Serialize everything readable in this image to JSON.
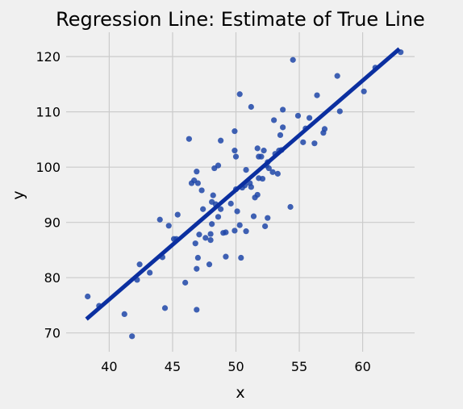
{
  "chart_data": {
    "type": "scatter",
    "title": "Regression Line: Estimate of True Line",
    "xlabel": "x",
    "ylabel": "y",
    "xlim": [
      36.6,
      64.1
    ],
    "ylim": [
      66.6,
      124.4
    ],
    "xticks": [
      40,
      45,
      50,
      55,
      60
    ],
    "yticks": [
      70,
      80,
      90,
      100,
      110,
      120
    ],
    "grid": true,
    "point_color": "#1f47a8",
    "line_color": "#0b2fa0",
    "background": "#f0f0f0",
    "points": [
      [
        38.3,
        76.6
      ],
      [
        39.2,
        74.9
      ],
      [
        41.2,
        73.4
      ],
      [
        41.8,
        69.4
      ],
      [
        42.2,
        79.6
      ],
      [
        42.4,
        82.4
      ],
      [
        43.2,
        80.9
      ],
      [
        44.0,
        90.5
      ],
      [
        44.2,
        83.7
      ],
      [
        44.4,
        74.5
      ],
      [
        44.7,
        89.4
      ],
      [
        45.1,
        87.0
      ],
      [
        45.3,
        87.0
      ],
      [
        45.4,
        91.4
      ],
      [
        46.0,
        79.1
      ],
      [
        46.3,
        105.1
      ],
      [
        46.5,
        97.1
      ],
      [
        46.7,
        97.6
      ],
      [
        46.8,
        86.2
      ],
      [
        46.9,
        74.2
      ],
      [
        46.9,
        81.6
      ],
      [
        46.9,
        99.2
      ],
      [
        47.0,
        83.6
      ],
      [
        47.0,
        97.1
      ],
      [
        47.1,
        87.8
      ],
      [
        47.3,
        95.8
      ],
      [
        47.4,
        92.4
      ],
      [
        47.6,
        87.2
      ],
      [
        47.9,
        82.4
      ],
      [
        48.0,
        86.8
      ],
      [
        48.0,
        87.9
      ],
      [
        48.1,
        89.7
      ],
      [
        48.1,
        93.7
      ],
      [
        48.2,
        94.9
      ],
      [
        48.3,
        99.8
      ],
      [
        48.4,
        93.3
      ],
      [
        48.6,
        100.3
      ],
      [
        48.6,
        91.0
      ],
      [
        48.8,
        104.8
      ],
      [
        48.8,
        92.4
      ],
      [
        49.0,
        88.1
      ],
      [
        49.2,
        83.8
      ],
      [
        49.2,
        88.2
      ],
      [
        49.6,
        93.4
      ],
      [
        49.9,
        103.0
      ],
      [
        49.9,
        88.5
      ],
      [
        49.9,
        106.5
      ],
      [
        50.0,
        101.9
      ],
      [
        50.0,
        96.0
      ],
      [
        50.1,
        92.0
      ],
      [
        50.3,
        113.2
      ],
      [
        50.3,
        89.5
      ],
      [
        50.4,
        83.6
      ],
      [
        50.5,
        96.3
      ],
      [
        50.7,
        96.7
      ],
      [
        50.8,
        88.4
      ],
      [
        50.8,
        99.5
      ],
      [
        51.1,
        97.1
      ],
      [
        51.2,
        96.4
      ],
      [
        51.2,
        110.9
      ],
      [
        51.4,
        91.1
      ],
      [
        51.5,
        94.5
      ],
      [
        51.7,
        103.4
      ],
      [
        51.7,
        95.0
      ],
      [
        51.8,
        98.0
      ],
      [
        51.8,
        101.9
      ],
      [
        52.0,
        101.9
      ],
      [
        52.1,
        97.9
      ],
      [
        52.2,
        103.0
      ],
      [
        52.3,
        89.3
      ],
      [
        52.4,
        100.3
      ],
      [
        52.5,
        100.9
      ],
      [
        52.5,
        90.8
      ],
      [
        52.6,
        99.8
      ],
      [
        52.9,
        99.1
      ],
      [
        53.0,
        108.5
      ],
      [
        53.1,
        102.4
      ],
      [
        53.3,
        98.8
      ],
      [
        53.4,
        103.0
      ],
      [
        53.5,
        105.8
      ],
      [
        53.6,
        103.1
      ],
      [
        53.7,
        107.2
      ],
      [
        53.7,
        110.4
      ],
      [
        54.3,
        92.8
      ],
      [
        54.5,
        119.4
      ],
      [
        54.9,
        109.3
      ],
      [
        55.3,
        104.5
      ],
      [
        55.5,
        107.0
      ],
      [
        55.8,
        108.9
      ],
      [
        56.2,
        104.3
      ],
      [
        56.4,
        113.0
      ],
      [
        56.9,
        106.2
      ],
      [
        57.0,
        106.9
      ],
      [
        58.0,
        116.5
      ],
      [
        58.2,
        110.1
      ],
      [
        60.1,
        113.7
      ],
      [
        61.0,
        118.0
      ],
      [
        63.0,
        120.8
      ]
    ],
    "regression_line": {
      "x": [
        38.2,
        62.9
      ],
      "y": [
        72.5,
        121.4
      ]
    }
  }
}
